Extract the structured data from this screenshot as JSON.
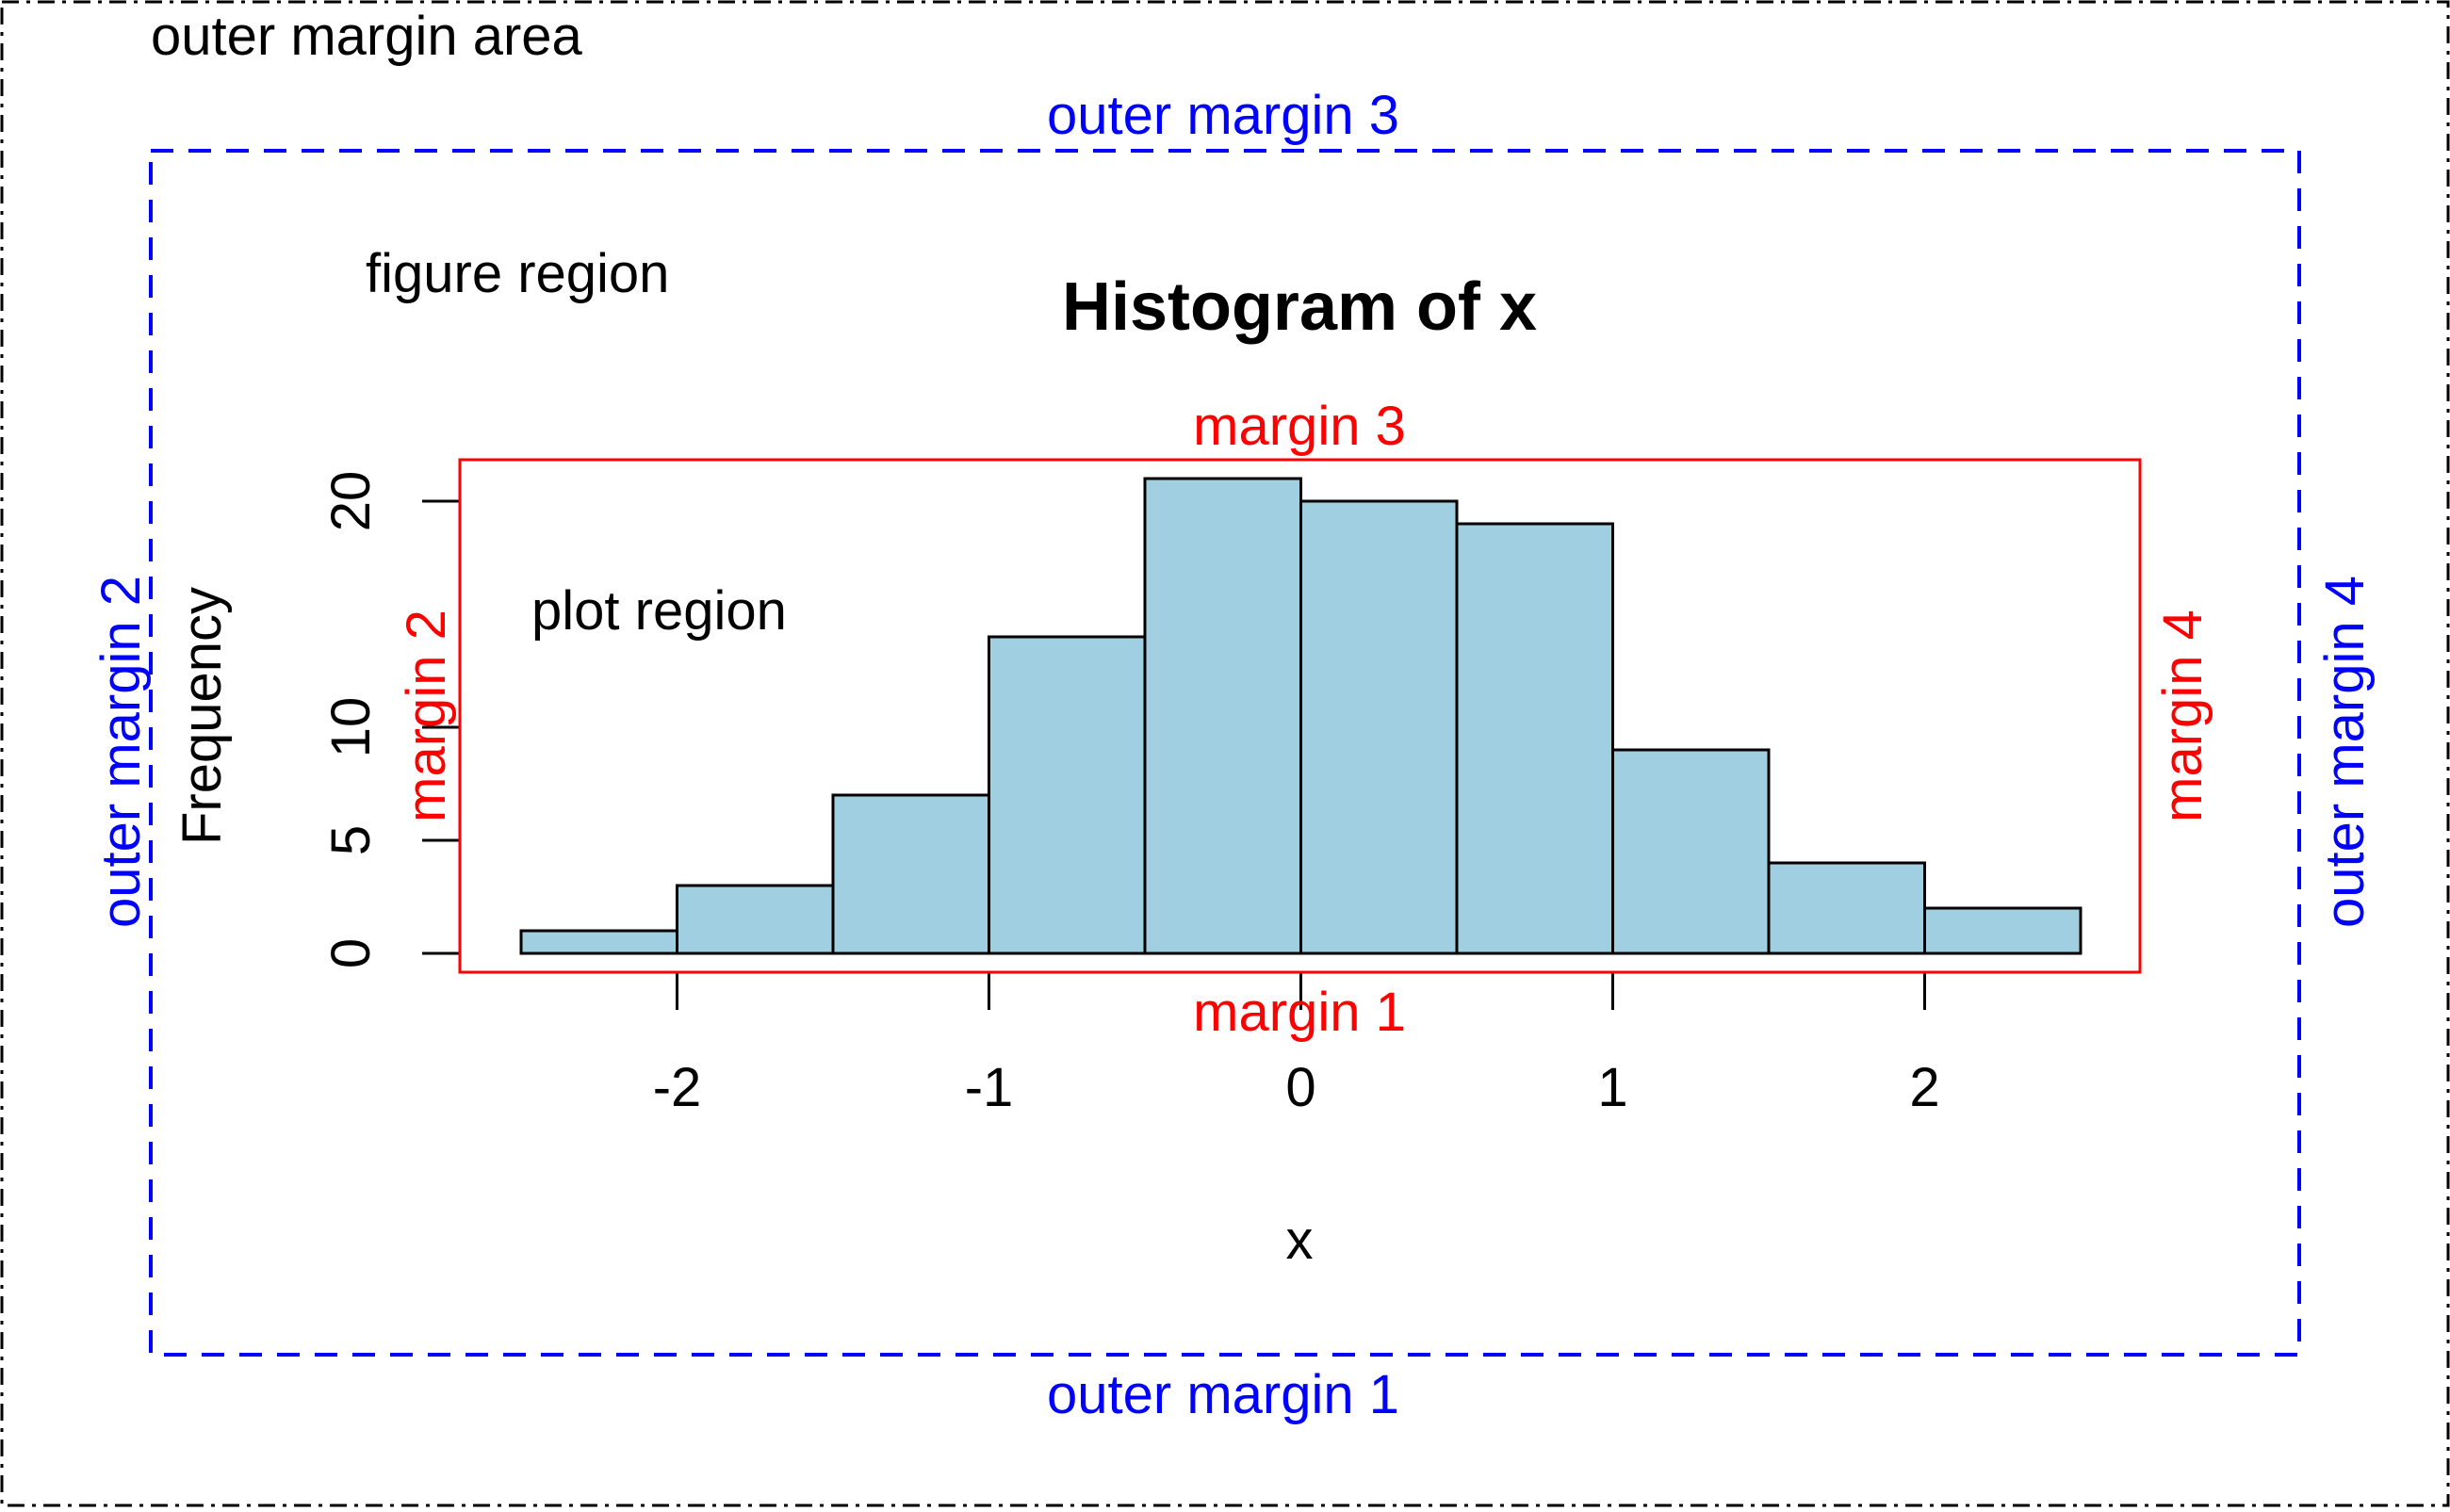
{
  "labels": {
    "outer_area": "outer margin area",
    "figure_region": "figure region",
    "plot_region": "plot region",
    "outer_margin_1": "outer margin 1",
    "outer_margin_2": "outer margin 2",
    "outer_margin_3": "outer margin 3",
    "outer_margin_4": "outer margin 4",
    "margin_1": "margin 1",
    "margin_2": "margin 2",
    "margin_3": "margin 3",
    "margin_4": "margin 4"
  },
  "colors": {
    "bar_fill": "#9fcfe1",
    "bar_stroke": "#000000",
    "outer_margin": "#0000ff",
    "margin": "#ff0000",
    "text": "#000000"
  },
  "chart_data": {
    "type": "bar",
    "title": "Histogram of x",
    "xlabel": "x",
    "ylabel": "Frequency",
    "bins": [
      {
        "from": -2.5,
        "to": -2.0,
        "count": 1
      },
      {
        "from": -2.0,
        "to": -1.5,
        "count": 3
      },
      {
        "from": -1.5,
        "to": -1.0,
        "count": 7
      },
      {
        "from": -1.0,
        "to": -0.5,
        "count": 14
      },
      {
        "from": -0.5,
        "to": 0.0,
        "count": 21
      },
      {
        "from": 0.0,
        "to": 0.5,
        "count": 20
      },
      {
        "from": 0.5,
        "to": 1.0,
        "count": 19
      },
      {
        "from": 1.0,
        "to": 1.5,
        "count": 9
      },
      {
        "from": 1.5,
        "to": 2.0,
        "count": 4
      },
      {
        "from": 2.0,
        "to": 2.5,
        "count": 2
      }
    ],
    "x_ticks": [
      -2,
      -1,
      0,
      1,
      2
    ],
    "x_tick_labels": [
      "-2",
      "-1",
      "0",
      "1",
      "2"
    ],
    "y_ticks": [
      0,
      5,
      10,
      20
    ],
    "y_tick_labels": [
      "0",
      "5",
      "10",
      "20"
    ],
    "xlim": [
      -2.5,
      2.5
    ],
    "ylim": [
      0,
      21
    ],
    "grid": false
  }
}
